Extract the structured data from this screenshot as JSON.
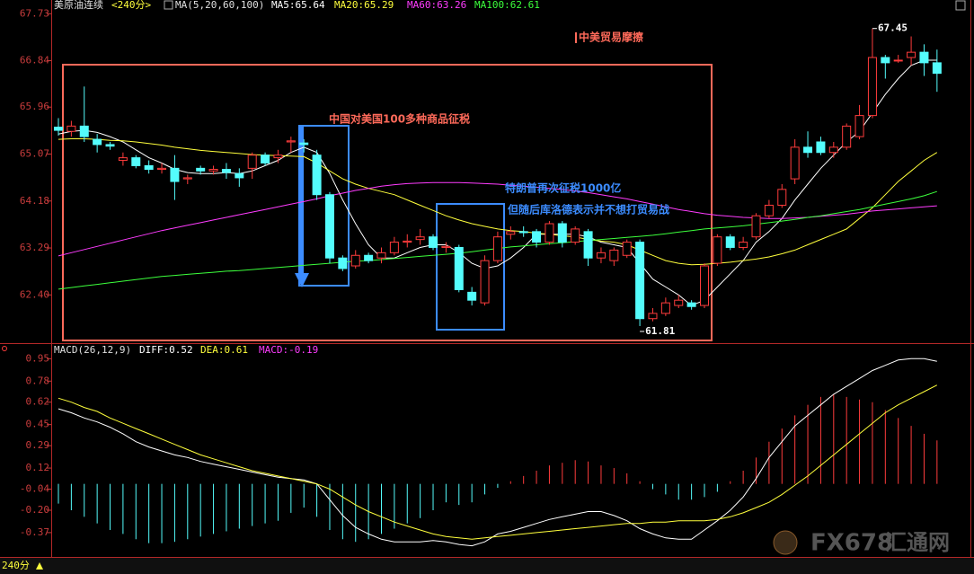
{
  "chart_data": [
    {
      "type": "candlestick",
      "title": "美原油连续",
      "period": "<240分>",
      "indicator": "MA(5,20,60,100)",
      "open": [
        65.58,
        65.5,
        65.6,
        65.35,
        65.25,
        64.95,
        65.0,
        64.85,
        64.78,
        64.8,
        64.6,
        64.8,
        64.75,
        64.78,
        64.7,
        64.8,
        65.05,
        65.0,
        65.3,
        65.28,
        65.05,
        64.3,
        63.1,
        62.95,
        63.15,
        63.1,
        63.2,
        63.4,
        63.45,
        63.5,
        63.3,
        63.3,
        62.45,
        62.25,
        63.05,
        63.55,
        63.6,
        63.6,
        63.4,
        63.75,
        63.4,
        63.6,
        63.1,
        63.05,
        63.15,
        63.4,
        61.95,
        62.05,
        62.2,
        62.25,
        62.2,
        63.0,
        63.5,
        63.3,
        63.5,
        63.9,
        64.1,
        64.6,
        65.2,
        65.3,
        65.1,
        65.2,
        65.4,
        65.8,
        66.9,
        66.85,
        66.9,
        67.0,
        66.8
      ],
      "high": [
        65.75,
        65.7,
        66.35,
        65.45,
        65.3,
        65.1,
        65.05,
        64.95,
        64.9,
        65.05,
        64.68,
        64.85,
        64.85,
        64.9,
        64.8,
        65.1,
        65.1,
        65.15,
        65.4,
        65.35,
        65.15,
        64.35,
        63.15,
        63.25,
        63.2,
        63.3,
        63.5,
        63.55,
        63.65,
        63.55,
        63.4,
        63.35,
        62.55,
        63.15,
        63.6,
        63.7,
        63.7,
        63.65,
        63.8,
        63.8,
        63.7,
        63.65,
        63.3,
        63.3,
        63.45,
        63.45,
        62.15,
        62.35,
        62.4,
        62.3,
        63.0,
        63.55,
        63.55,
        63.5,
        63.95,
        64.2,
        64.5,
        65.35,
        65.5,
        65.4,
        65.3,
        65.65,
        66.0,
        67.45,
        66.95,
        66.95,
        67.3,
        67.15,
        67.05
      ],
      "low": [
        65.42,
        65.4,
        65.3,
        65.1,
        65.15,
        64.85,
        64.8,
        64.7,
        64.7,
        64.2,
        64.5,
        64.68,
        64.68,
        64.6,
        64.45,
        64.6,
        64.85,
        64.9,
        65.1,
        65.1,
        64.2,
        63.0,
        62.85,
        62.9,
        63.0,
        63.0,
        63.15,
        63.3,
        63.35,
        63.25,
        63.2,
        62.45,
        62.2,
        62.2,
        63.0,
        63.45,
        63.5,
        63.3,
        63.35,
        63.3,
        63.35,
        62.95,
        63.0,
        62.95,
        63.1,
        61.81,
        61.9,
        62.0,
        62.15,
        62.12,
        62.15,
        62.95,
        63.25,
        63.25,
        63.45,
        63.85,
        64.05,
        64.5,
        65.0,
        65.05,
        65.0,
        65.15,
        65.35,
        65.75,
        66.5,
        66.8,
        66.75,
        66.55,
        66.25
      ],
      "close": [
        65.52,
        65.6,
        65.4,
        65.25,
        65.22,
        65.0,
        64.85,
        64.78,
        64.8,
        64.55,
        64.62,
        64.75,
        64.78,
        64.72,
        64.62,
        65.05,
        64.9,
        65.05,
        65.32,
        65.25,
        64.3,
        63.1,
        62.9,
        63.15,
        63.05,
        63.2,
        63.4,
        63.42,
        63.5,
        63.3,
        63.32,
        62.5,
        62.3,
        63.05,
        63.5,
        63.6,
        63.58,
        63.4,
        63.75,
        63.4,
        63.65,
        63.1,
        63.2,
        63.25,
        63.4,
        61.95,
        62.05,
        62.25,
        62.3,
        62.18,
        62.95,
        63.5,
        63.3,
        63.4,
        63.9,
        64.1,
        64.4,
        65.2,
        65.1,
        65.1,
        65.2,
        65.6,
        65.8,
        66.9,
        66.8,
        66.85,
        67.0,
        66.8,
        66.6
      ],
      "up_color": "#ff3c3c",
      "down_color": "#54fcfc",
      "series": [
        {
          "name": "MA5:65.64",
          "color": "#ffffff",
          "values": [
            65.45,
            65.5,
            65.52,
            65.48,
            65.4,
            65.3,
            65.15,
            65.0,
            64.9,
            64.78,
            64.72,
            64.7,
            64.7,
            64.72,
            64.7,
            64.75,
            64.85,
            64.95,
            65.1,
            65.2,
            65.1,
            64.7,
            64.2,
            63.75,
            63.35,
            63.1,
            63.1,
            63.2,
            63.3,
            63.35,
            63.35,
            63.2,
            63.0,
            62.9,
            62.95,
            63.1,
            63.3,
            63.55,
            63.55,
            63.55,
            63.55,
            63.5,
            63.4,
            63.35,
            63.3,
            63.0,
            62.7,
            62.55,
            62.4,
            62.2,
            62.3,
            62.55,
            62.8,
            63.05,
            63.4,
            63.6,
            63.85,
            64.2,
            64.5,
            64.8,
            65.05,
            65.3,
            65.5,
            65.85,
            66.2,
            66.5,
            66.75,
            66.85,
            66.85
          ]
        },
        {
          "name": "MA20:65.29",
          "color": "#ffff3c",
          "values": [
            65.35,
            65.36,
            65.36,
            65.35,
            65.33,
            65.32,
            65.3,
            65.27,
            65.24,
            65.2,
            65.17,
            65.14,
            65.12,
            65.1,
            65.08,
            65.06,
            65.05,
            65.04,
            65.03,
            65.02,
            64.9,
            64.75,
            64.6,
            64.5,
            64.42,
            64.36,
            64.3,
            64.2,
            64.1,
            64.0,
            63.9,
            63.82,
            63.75,
            63.7,
            63.65,
            63.62,
            63.6,
            63.57,
            63.55,
            63.52,
            63.5,
            63.45,
            63.42,
            63.4,
            63.35,
            63.25,
            63.15,
            63.05,
            63.0,
            62.97,
            62.98,
            63.0,
            63.02,
            63.05,
            63.08,
            63.12,
            63.18,
            63.25,
            63.35,
            63.45,
            63.55,
            63.65,
            63.85,
            64.05,
            64.3,
            64.55,
            64.75,
            64.95,
            65.1
          ]
        },
        {
          "name": "MA60:63.26",
          "color": "#ff3cff",
          "values": [
            63.14,
            63.2,
            63.26,
            63.32,
            63.38,
            63.44,
            63.5,
            63.56,
            63.62,
            63.67,
            63.72,
            63.77,
            63.82,
            63.87,
            63.92,
            63.97,
            64.02,
            64.07,
            64.12,
            64.17,
            64.22,
            64.28,
            64.33,
            64.38,
            64.42,
            64.46,
            64.49,
            64.51,
            64.52,
            64.53,
            64.53,
            64.53,
            64.52,
            64.51,
            64.5,
            64.48,
            64.46,
            64.44,
            64.42,
            64.4,
            64.37,
            64.34,
            64.3,
            64.26,
            64.22,
            64.17,
            64.12,
            64.07,
            64.02,
            63.98,
            63.94,
            63.91,
            63.89,
            63.87,
            63.86,
            63.85,
            63.85,
            63.86,
            63.87,
            63.89,
            63.91,
            63.93,
            63.96,
            63.99,
            64.01,
            64.03,
            64.05,
            64.07,
            64.09
          ]
        },
        {
          "name": "MA100:62.61",
          "color": "#3cff3c",
          "values": [
            62.51,
            62.54,
            62.57,
            62.6,
            62.63,
            62.66,
            62.69,
            62.72,
            62.75,
            62.77,
            62.79,
            62.81,
            62.83,
            62.85,
            62.86,
            62.88,
            62.9,
            62.92,
            62.94,
            62.96,
            62.98,
            63.0,
            63.02,
            63.04,
            63.05,
            63.07,
            63.09,
            63.11,
            63.13,
            63.15,
            63.17,
            63.19,
            63.22,
            63.25,
            63.28,
            63.31,
            63.33,
            63.35,
            63.37,
            63.39,
            63.41,
            63.43,
            63.45,
            63.47,
            63.49,
            63.51,
            63.53,
            63.56,
            63.59,
            63.62,
            63.65,
            63.67,
            63.69,
            63.71,
            63.74,
            63.77,
            63.8,
            63.83,
            63.87,
            63.9,
            63.94,
            63.98,
            64.02,
            64.07,
            64.12,
            64.17,
            64.22,
            64.28,
            64.36
          ]
        }
      ],
      "ylim": [
        61.52,
        67.99
      ],
      "yticks": [
        {
          "value": 62.4,
          "label": "62.40"
        },
        63.29,
        64.18,
        65.07,
        65.96,
        66.84,
        67.73
      ],
      "annotations": [
        {
          "text": "中美贸易摩擦",
          "color": "#ff6a5a"
        },
        {
          "text": "中国对美国100多种商品征税",
          "color": "#ff6a5a"
        },
        {
          "text": "特朗普再次征税1000亿",
          "color": "#3c8cff"
        },
        {
          "text": "但随后库洛德表示并不想打贸易战",
          "color": "#3c8cff"
        }
      ]
    },
    {
      "type": "macd",
      "title": "MACD(26,12,9)",
      "histogram": {
        "name": "MACD:-0.19",
        "color": "#ff3cff",
        "up_color": "#ff3c3c",
        "down_color": "#54fcfc",
        "values": [
          -0.15,
          -0.2,
          -0.25,
          -0.3,
          -0.35,
          -0.38,
          -0.42,
          -0.45,
          -0.45,
          -0.44,
          -0.42,
          -0.4,
          -0.38,
          -0.36,
          -0.34,
          -0.32,
          -0.3,
          -0.28,
          -0.22,
          -0.18,
          -0.25,
          -0.35,
          -0.42,
          -0.44,
          -0.42,
          -0.38,
          -0.34,
          -0.3,
          -0.26,
          -0.2,
          -0.14,
          -0.16,
          -0.14,
          -0.08,
          -0.03,
          0.02,
          0.06,
          0.1,
          0.14,
          0.16,
          0.18,
          0.17,
          0.14,
          0.12,
          0.08,
          0.02,
          -0.04,
          -0.08,
          -0.12,
          -0.12,
          -0.1,
          -0.06,
          0.02,
          0.1,
          0.2,
          0.32,
          0.42,
          0.52,
          0.6,
          0.66,
          0.68,
          0.66,
          0.64,
          0.62,
          0.56,
          0.5,
          0.44,
          0.38,
          0.33
        ]
      },
      "series": [
        {
          "name": "DIFF:0.52",
          "color": "#ffffff",
          "values": [
            0.57,
            0.54,
            0.5,
            0.47,
            0.43,
            0.38,
            0.32,
            0.28,
            0.25,
            0.22,
            0.2,
            0.17,
            0.15,
            0.13,
            0.11,
            0.09,
            0.07,
            0.05,
            0.04,
            0.03,
            0.0,
            -0.12,
            -0.24,
            -0.33,
            -0.38,
            -0.42,
            -0.44,
            -0.44,
            -0.44,
            -0.43,
            -0.44,
            -0.46,
            -0.47,
            -0.44,
            -0.38,
            -0.36,
            -0.33,
            -0.3,
            -0.27,
            -0.25,
            -0.23,
            -0.21,
            -0.21,
            -0.24,
            -0.28,
            -0.34,
            -0.38,
            -0.41,
            -0.42,
            -0.42,
            -0.35,
            -0.28,
            -0.2,
            -0.1,
            0.04,
            0.2,
            0.32,
            0.44,
            0.52,
            0.6,
            0.68,
            0.74,
            0.8,
            0.86,
            0.9,
            0.94,
            0.95,
            0.95,
            0.93
          ]
        },
        {
          "name": "DEA:0.61",
          "color": "#ffff3c",
          "values": [
            0.65,
            0.62,
            0.58,
            0.55,
            0.5,
            0.46,
            0.42,
            0.38,
            0.34,
            0.3,
            0.26,
            0.22,
            0.19,
            0.16,
            0.13,
            0.1,
            0.08,
            0.06,
            0.04,
            0.02,
            0.0,
            -0.04,
            -0.1,
            -0.16,
            -0.21,
            -0.25,
            -0.29,
            -0.32,
            -0.35,
            -0.38,
            -0.4,
            -0.41,
            -0.42,
            -0.41,
            -0.4,
            -0.39,
            -0.38,
            -0.37,
            -0.36,
            -0.35,
            -0.34,
            -0.33,
            -0.32,
            -0.31,
            -0.3,
            -0.3,
            -0.29,
            -0.29,
            -0.28,
            -0.28,
            -0.28,
            -0.27,
            -0.25,
            -0.22,
            -0.18,
            -0.14,
            -0.08,
            -0.01,
            0.06,
            0.14,
            0.22,
            0.3,
            0.38,
            0.46,
            0.54,
            0.6,
            0.65,
            0.7,
            0.75
          ]
        }
      ],
      "ylim": [
        -0.5,
        1.0
      ],
      "yticks": [
        -0.37,
        {
          "value": -0.2,
          "label": "-0.20"
        },
        -0.04,
        0.12,
        0.29,
        0.45,
        0.62,
        0.78,
        0.95
      ]
    }
  ],
  "footer": {
    "period": "240分",
    "watermark": "FX678",
    "watermark_cn": "汇通网"
  }
}
